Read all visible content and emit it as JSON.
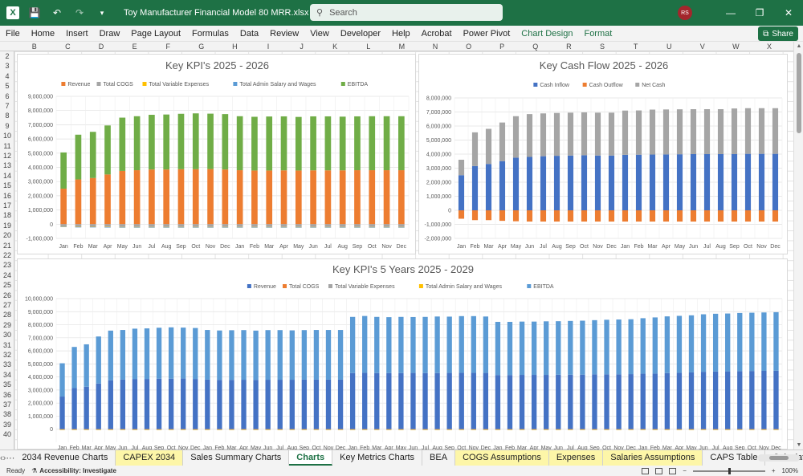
{
  "window": {
    "title": "Toy Manufacturer Financial Model 80 MRR.xlsx  -  Excel",
    "search_placeholder": "Search",
    "user_initials": "RS",
    "share_label": "Share"
  },
  "ribbon": {
    "tabs": [
      "File",
      "Home",
      "Insert",
      "Draw",
      "Page Layout",
      "Formulas",
      "Data",
      "Review",
      "View",
      "Developer",
      "Help",
      "Acrobat",
      "Power Pivot",
      "Chart Design",
      "Format"
    ],
    "contextual_tabs": [
      "Chart Design",
      "Format"
    ]
  },
  "grid": {
    "columns": [
      "B",
      "C",
      "D",
      "E",
      "F",
      "G",
      "H",
      "I",
      "J",
      "K",
      "L",
      "M",
      "N",
      "O",
      "P",
      "Q",
      "R",
      "S",
      "T",
      "U",
      "V",
      "W",
      "X"
    ],
    "rows": [
      "2",
      "3",
      "4",
      "5",
      "6",
      "7",
      "8",
      "9",
      "10",
      "11",
      "12",
      "13",
      "14",
      "15",
      "16",
      "17",
      "18",
      "19",
      "20",
      "21",
      "22",
      "23",
      "24",
      "25",
      "26",
      "27",
      "28",
      "29",
      "30",
      "31",
      "32",
      "33",
      "34",
      "35",
      "36",
      "37",
      "38",
      "39",
      "40"
    ]
  },
  "chart_data": [
    {
      "type": "bar",
      "stacked": true,
      "title": "Key KPI's 2025 - 2026",
      "legend_position": "top",
      "legend": [
        "Revenue",
        "Total COGS",
        "Total Variable Expenses",
        "Total Admin Salary and Wages",
        "EBITDA"
      ],
      "categories": [
        "Jan",
        "Feb",
        "Mar",
        "Apr",
        "May",
        "Jun",
        "Jul",
        "Aug",
        "Sep",
        "Oct",
        "Nov",
        "Dec",
        "Jan",
        "Feb",
        "Mar",
        "Apr",
        "May",
        "Jun",
        "Jul",
        "Aug",
        "Sep",
        "Oct",
        "Nov",
        "Dec"
      ],
      "yticks": [
        "-1,000,000",
        "0",
        "1,000,000",
        "2,000,000",
        "3,000,000",
        "4,000,000",
        "5,000,000",
        "6,000,000",
        "7,000,000",
        "8,000,000",
        "9,000,000"
      ],
      "ylim": [
        -1000000,
        9000000
      ],
      "series": [
        {
          "name": "Revenue",
          "color": "#ed7d31",
          "values": [
            2500000,
            3150000,
            3250000,
            3500000,
            3750000,
            3800000,
            3850000,
            3850000,
            3870000,
            3870000,
            3880000,
            3850000,
            3800000,
            3780000,
            3780000,
            3790000,
            3780000,
            3790000,
            3790000,
            3790000,
            3800000,
            3800000,
            3800000,
            3800000
          ]
        },
        {
          "name": "Total COGS",
          "color": "#a5a5a5",
          "values": [
            -150000,
            -180000,
            -180000,
            -190000,
            -200000,
            -200000,
            -200000,
            -200000,
            -200000,
            -200000,
            -200000,
            -200000,
            -200000,
            -200000,
            -200000,
            -200000,
            -200000,
            -200000,
            -200000,
            -200000,
            -200000,
            -200000,
            -200000,
            -200000
          ]
        },
        {
          "name": "Total Variable Expenses",
          "color": "#ffc000",
          "values": [
            -20000,
            -20000,
            -20000,
            -20000,
            -20000,
            -20000,
            -20000,
            -20000,
            -20000,
            -20000,
            -20000,
            -20000,
            -20000,
            -20000,
            -20000,
            -20000,
            -20000,
            -20000,
            -20000,
            -20000,
            -20000,
            -20000,
            -20000,
            -20000
          ]
        },
        {
          "name": "Total Admin Salary and Wages",
          "color": "#5b9bd5",
          "values": [
            -10000,
            -10000,
            -10000,
            -10000,
            -10000,
            -10000,
            -10000,
            -10000,
            -10000,
            -10000,
            -10000,
            -10000,
            -10000,
            -10000,
            -10000,
            -10000,
            -10000,
            -10000,
            -10000,
            -10000,
            -10000,
            -10000,
            -10000,
            -10000
          ]
        },
        {
          "name": "EBITDA",
          "color": "#70ad47",
          "values": [
            2550000,
            3150000,
            3250000,
            3450000,
            3750000,
            3800000,
            3850000,
            3870000,
            3900000,
            3930000,
            3900000,
            3900000,
            3800000,
            3780000,
            3800000,
            3800000,
            3770000,
            3800000,
            3800000,
            3780000,
            3790000,
            3800000,
            3800000,
            3800000
          ]
        }
      ]
    },
    {
      "type": "bar",
      "stacked": true,
      "title": "Key Cash Flow 2025 - 2026",
      "legend_position": "top",
      "legend": [
        "Cash Inflow",
        "Cash Outflow",
        "Net Cash"
      ],
      "categories": [
        "Jan",
        "Feb",
        "Mar",
        "Apr",
        "May",
        "Jun",
        "Jul",
        "Aug",
        "Sep",
        "Oct",
        "Nov",
        "Dec",
        "Jan",
        "Feb",
        "Mar",
        "Apr",
        "May",
        "Jun",
        "Jul",
        "Aug",
        "Sep",
        "Oct",
        "Nov",
        "Dec"
      ],
      "yticks": [
        "-2,000,000",
        "-1,000,000",
        "0",
        "1,000,000",
        "2,000,000",
        "3,000,000",
        "4,000,000",
        "5,000,000",
        "6,000,000",
        "7,000,000",
        "8,000,000"
      ],
      "ylim": [
        -2000000,
        8000000
      ],
      "series": [
        {
          "name": "Cash Inflow",
          "color": "#4472c4",
          "values": [
            2500000,
            3150000,
            3300000,
            3500000,
            3750000,
            3800000,
            3850000,
            3880000,
            3900000,
            3920000,
            3900000,
            3900000,
            3950000,
            3960000,
            3970000,
            3980000,
            3990000,
            4000000,
            4000000,
            4000000,
            4000000,
            4020000,
            4020000,
            4020000
          ]
        },
        {
          "name": "Cash Outflow",
          "color": "#ed7d31",
          "values": [
            -600000,
            -700000,
            -700000,
            -750000,
            -780000,
            -800000,
            -800000,
            -800000,
            -800000,
            -800000,
            -800000,
            -800000,
            -800000,
            -800000,
            -800000,
            -800000,
            -800000,
            -800000,
            -800000,
            -800000,
            -800000,
            -800000,
            -800000,
            -800000
          ]
        },
        {
          "name": "Net Cash",
          "color": "#a5a5a5",
          "values": [
            1100000,
            2400000,
            2500000,
            2750000,
            2950000,
            3050000,
            3050000,
            3050000,
            3050000,
            3050000,
            3050000,
            3050000,
            3150000,
            3150000,
            3200000,
            3200000,
            3200000,
            3200000,
            3200000,
            3200000,
            3250000,
            3250000,
            3250000,
            3250000
          ]
        }
      ]
    },
    {
      "type": "bar",
      "stacked": true,
      "title": "Key KPI's 5 Years 2025 - 2029",
      "legend_position": "top",
      "legend": [
        "Revenue",
        "Total COGS",
        "Total Variable Expenses",
        "Total Admin Salary and Wages",
        "EBITDA"
      ],
      "categories": [
        "Jan",
        "Feb",
        "Mar",
        "Apr",
        "May",
        "Jun",
        "Jul",
        "Aug",
        "Sep",
        "Oct",
        "Nov",
        "Dec",
        "Jan",
        "Feb",
        "Mar",
        "Apr",
        "May",
        "Jun",
        "Jul",
        "Aug",
        "Sep",
        "Oct",
        "Nov",
        "Dec",
        "Jan",
        "Feb",
        "Mar",
        "Apr",
        "May",
        "Jun",
        "Jul",
        "Aug",
        "Sep",
        "Oct",
        "Nov",
        "Dec",
        "Jan",
        "Feb",
        "Mar",
        "Apr",
        "May",
        "Jun",
        "Jul",
        "Aug",
        "Sep",
        "Oct",
        "Nov",
        "Dec",
        "Jan",
        "Feb",
        "Mar",
        "Apr",
        "May",
        "Jun",
        "Jul",
        "Aug",
        "Sep",
        "Oct",
        "Nov",
        "Dec"
      ],
      "yticks": [
        "0",
        "1,000,000",
        "2,000,000",
        "3,000,000",
        "4,000,000",
        "5,000,000",
        "6,000,000",
        "7,000,000",
        "8,000,000",
        "9,000,000",
        "10,000,000"
      ],
      "ylim": [
        -1000000,
        10000000
      ],
      "series": [
        {
          "name": "Revenue",
          "color": "#4472c4",
          "values": [
            2500000,
            3150000,
            3250000,
            3500000,
            3750000,
            3800000,
            3850000,
            3850000,
            3870000,
            3870000,
            3880000,
            3850000,
            3800000,
            3780000,
            3780000,
            3790000,
            3780000,
            3790000,
            3790000,
            3790000,
            3800000,
            3800000,
            3800000,
            3800000,
            4300000,
            4320000,
            4300000,
            4300000,
            4300000,
            4310000,
            4300000,
            4300000,
            4310000,
            4320000,
            4320000,
            4310000,
            4150000,
            4150000,
            4160000,
            4160000,
            4160000,
            4170000,
            4170000,
            4180000,
            4200000,
            4200000,
            4200000,
            4220000,
            4250000,
            4260000,
            4300000,
            4320000,
            4350000,
            4400000,
            4420000,
            4430000,
            4450000,
            4460000,
            4470000,
            4480000
          ]
        },
        {
          "name": "Total COGS",
          "color": "#ed7d31",
          "values": [
            -20000,
            -20000,
            -20000,
            -20000,
            -20000,
            -20000,
            -20000,
            -20000,
            -20000,
            -20000,
            -20000,
            -20000,
            -20000,
            -20000,
            -20000,
            -20000,
            -20000,
            -20000,
            -20000,
            -20000,
            -20000,
            -20000,
            -20000,
            -20000,
            -20000,
            -20000,
            -20000,
            -20000,
            -20000,
            -20000,
            -20000,
            -20000,
            -20000,
            -20000,
            -20000,
            -20000,
            -20000,
            -20000,
            -20000,
            -20000,
            -20000,
            -20000,
            -20000,
            -20000,
            -20000,
            -20000,
            -20000,
            -20000,
            -20000,
            -20000,
            -20000,
            -20000,
            -20000,
            -20000,
            -20000,
            -20000,
            -20000,
            -20000,
            -20000,
            -20000
          ]
        },
        {
          "name": "Total Variable Expenses",
          "color": "#a5a5a5",
          "values": [
            -10000,
            -10000,
            -10000,
            -10000,
            -10000,
            -10000,
            -10000,
            -10000,
            -10000,
            -10000,
            -10000,
            -10000,
            -10000,
            -10000,
            -10000,
            -10000,
            -10000,
            -10000,
            -10000,
            -10000,
            -10000,
            -10000,
            -10000,
            -10000,
            -10000,
            -10000,
            -10000,
            -10000,
            -10000,
            -10000,
            -10000,
            -10000,
            -10000,
            -10000,
            -10000,
            -10000,
            -10000,
            -10000,
            -10000,
            -10000,
            -10000,
            -10000,
            -10000,
            -10000,
            -10000,
            -10000,
            -10000,
            -10000,
            -10000,
            -10000,
            -10000,
            -10000,
            -10000,
            -10000,
            -10000,
            -10000,
            -10000,
            -10000,
            -10000,
            -10000
          ]
        },
        {
          "name": "Total Admin Salary and Wages",
          "color": "#ffc000",
          "values": [
            -5000,
            -5000,
            -5000,
            -5000,
            -5000,
            -5000,
            -5000,
            -5000,
            -5000,
            -5000,
            -5000,
            -5000,
            -5000,
            -5000,
            -5000,
            -5000,
            -5000,
            -5000,
            -5000,
            -5000,
            -5000,
            -5000,
            -5000,
            -5000,
            -5000,
            -5000,
            -5000,
            -5000,
            -5000,
            -5000,
            -5000,
            -5000,
            -5000,
            -5000,
            -5000,
            -5000,
            -5000,
            -5000,
            -5000,
            -5000,
            -5000,
            -5000,
            -5000,
            -5000,
            -5000,
            -5000,
            -5000,
            -5000,
            -5000,
            -5000,
            -5000,
            -5000,
            -5000,
            -5000,
            -5000,
            -5000,
            -5000,
            -5000,
            -5000,
            -5000
          ]
        },
        {
          "name": "EBITDA",
          "color": "#5b9bd5",
          "values": [
            2550000,
            3150000,
            3250000,
            3600000,
            3800000,
            3800000,
            3850000,
            3870000,
            3900000,
            3930000,
            3900000,
            3900000,
            3800000,
            3780000,
            3800000,
            3800000,
            3770000,
            3800000,
            3800000,
            3780000,
            3790000,
            3800000,
            3800000,
            3800000,
            4300000,
            4350000,
            4300000,
            4280000,
            4300000,
            4280000,
            4300000,
            4330000,
            4310000,
            4340000,
            4340000,
            4320000,
            4070000,
            4070000,
            4080000,
            4080000,
            4100000,
            4100000,
            4120000,
            4130000,
            4150000,
            4180000,
            4200000,
            4200000,
            4250000,
            4300000,
            4340000,
            4360000,
            4370000,
            4400000,
            4420000,
            4430000,
            4450000,
            4460000,
            4470000,
            4480000
          ]
        }
      ]
    }
  ],
  "sheet_tabs": [
    {
      "label": "2034 Revenue Charts",
      "style": "plain"
    },
    {
      "label": "CAPEX 2034",
      "style": "yellow"
    },
    {
      "label": "Sales Summary Charts",
      "style": "plain"
    },
    {
      "label": "Charts",
      "style": "active"
    },
    {
      "label": "Key Metrics Charts",
      "style": "plain"
    },
    {
      "label": "BEA",
      "style": "plain"
    },
    {
      "label": "COGS Assumptions",
      "style": "yellow"
    },
    {
      "label": "Expenses",
      "style": "yellow"
    },
    {
      "label": "Salaries Assumptions",
      "style": "yellow"
    },
    {
      "label": "CAPS Table",
      "style": "plain"
    },
    {
      "label": "Calculatio",
      "style": "plain"
    }
  ],
  "status": {
    "ready": "Ready",
    "accessibility": "Accessibility: Investigate",
    "zoom": "100%"
  }
}
